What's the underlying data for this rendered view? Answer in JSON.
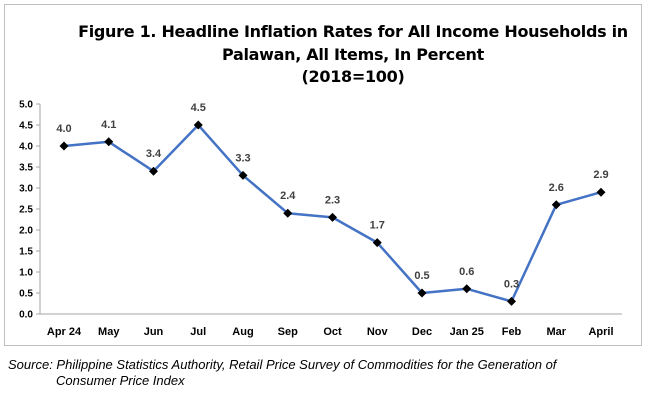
{
  "figure": {
    "title_line1": "Figure 1. Headline Inflation Rates for All Income Households in",
    "title_line2": "Palawan, All Items, In Percent",
    "title_line3": "(2018=100)"
  },
  "source": {
    "line1": "Source: Philippine Statistics Authority, Retail Price Survey of Commodities for the Generation of",
    "line2": "Consumer Price Index"
  },
  "chart_data": {
    "type": "line",
    "title": "Figure 1. Headline Inflation Rates for All Income Households in Palawan, All Items, In Percent (2018=100)",
    "xlabel": "",
    "ylabel": "",
    "categories": [
      "Apr 24",
      "May",
      "Jun",
      "Jul",
      "Aug",
      "Sep",
      "Oct",
      "Nov",
      "Dec",
      "Jan 25",
      "Feb",
      "Mar",
      "April"
    ],
    "series": [
      {
        "values": [
          4.0,
          4.1,
          3.4,
          4.5,
          3.3,
          2.4,
          2.3,
          1.7,
          0.5,
          0.6,
          0.3,
          2.6,
          2.9
        ],
        "labels": [
          "4.0",
          "4.1",
          "3.4",
          "4.5",
          "3.3",
          "2.4",
          "2.3",
          "1.7",
          "0.5",
          "0.6",
          "0.3",
          "2.6",
          "2.9"
        ],
        "line_color": "#4472c4",
        "marker_color": "#000000"
      }
    ],
    "ylim": [
      0,
      5
    ],
    "yticks": [
      "0.0",
      "0.5",
      "1.0",
      "1.5",
      "2.0",
      "2.5",
      "3.0",
      "3.5",
      "4.0",
      "4.5",
      "5.0"
    ],
    "grid": false,
    "legend": "none"
  }
}
